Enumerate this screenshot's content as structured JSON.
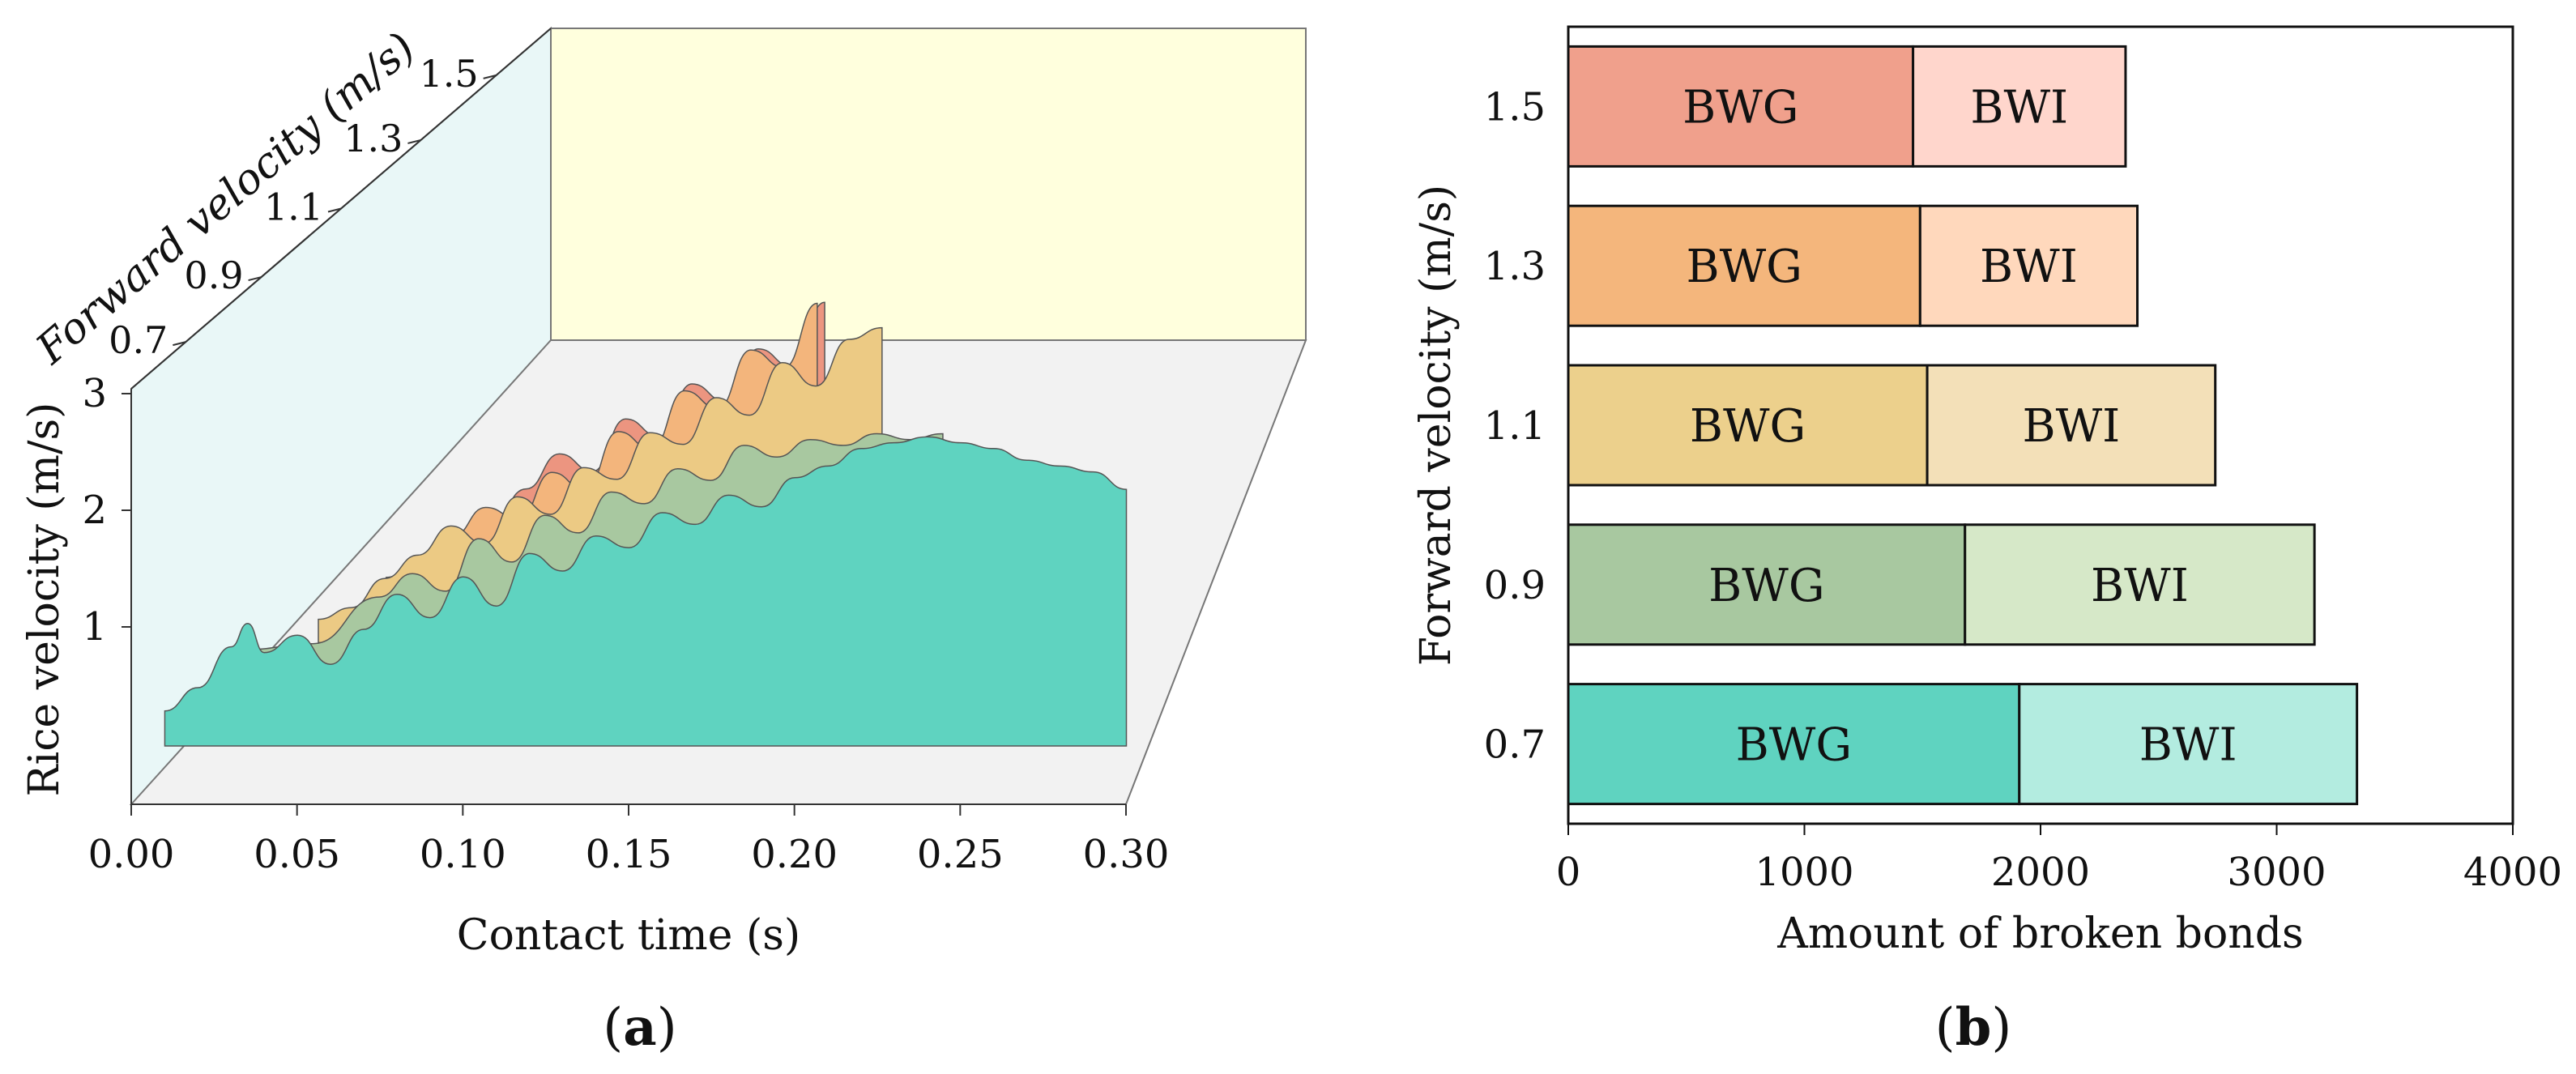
{
  "chart_data": [
    {
      "id": "a",
      "type": "area",
      "panel_label": "a",
      "xlabel": "Contact time (s)",
      "ylabel": "Rice velocity (m/s)",
      "zlabel": "Forward velocity (m/s)",
      "xlim": [
        0,
        0.3
      ],
      "ylim": [
        0,
        3.5
      ],
      "x_ticks": [
        "0.00",
        "0.05",
        "0.10",
        "0.15",
        "0.20",
        "0.25",
        "0.30"
      ],
      "y_ticks": [
        "1",
        "2",
        "3"
      ],
      "z_ticks": [
        "0.7",
        "0.9",
        "1.1",
        "1.3",
        "1.5"
      ],
      "series": [
        {
          "name": "0.7",
          "color": "#5fd3c0",
          "x": [
            0,
            0.01,
            0.02,
            0.025,
            0.03,
            0.04,
            0.05,
            0.06,
            0.07,
            0.08,
            0.09,
            0.1,
            0.11,
            0.12,
            0.13,
            0.14,
            0.15,
            0.16,
            0.17,
            0.18,
            0.19,
            0.2,
            0.21,
            0.22,
            0.23,
            0.24,
            0.25,
            0.26,
            0.27,
            0.28,
            0.29
          ],
          "y": [
            0.3,
            0.5,
            0.85,
            1.05,
            0.8,
            0.95,
            0.7,
            1.0,
            1.3,
            1.1,
            1.45,
            1.2,
            1.65,
            1.5,
            1.8,
            1.7,
            2.0,
            1.9,
            2.15,
            2.05,
            2.3,
            2.4,
            2.55,
            2.6,
            2.65,
            2.6,
            2.55,
            2.45,
            2.4,
            2.35,
            2.2
          ]
        },
        {
          "name": "0.9",
          "color": "#a8c8a0",
          "x": [
            0,
            0.02,
            0.04,
            0.05,
            0.06,
            0.07,
            0.08,
            0.09,
            0.1,
            0.11,
            0.12,
            0.13,
            0.14,
            0.15,
            0.16,
            0.17,
            0.18,
            0.19,
            0.2,
            0.21
          ],
          "y": [
            0.25,
            0.3,
            0.7,
            0.9,
            0.75,
            1.2,
            1.0,
            1.4,
            1.25,
            1.6,
            1.5,
            1.8,
            1.7,
            2.0,
            1.9,
            2.05,
            2.0,
            2.1,
            2.05,
            2.1
          ]
        },
        {
          "name": "1.1",
          "color": "#ecca84",
          "x": [
            0,
            0.01,
            0.02,
            0.03,
            0.04,
            0.05,
            0.06,
            0.07,
            0.08,
            0.09,
            0.1,
            0.11,
            0.12,
            0.13,
            0.14,
            0.15,
            0.16,
            0.17
          ],
          "y": [
            0.2,
            0.3,
            0.55,
            0.75,
            1.0,
            0.85,
            1.25,
            1.1,
            1.5,
            1.4,
            1.8,
            1.7,
            2.1,
            1.95,
            2.4,
            2.2,
            2.6,
            2.7
          ]
        },
        {
          "name": "1.3",
          "color": "#f3b57c",
          "x": [
            0,
            0.01,
            0.02,
            0.03,
            0.04,
            0.05,
            0.06,
            0.07,
            0.08,
            0.09,
            0.1,
            0.11,
            0.12,
            0.13
          ],
          "y": [
            0.25,
            0.4,
            0.6,
            0.85,
            0.75,
            1.15,
            1.0,
            1.5,
            1.35,
            1.85,
            1.7,
            2.2,
            2.05,
            2.6
          ]
        },
        {
          "name": "1.5",
          "color": "#ec9580",
          "x": [
            0,
            0.01,
            0.02,
            0.03,
            0.04,
            0.05,
            0.06,
            0.07,
            0.08,
            0.09,
            0.1,
            0.11
          ],
          "y": [
            0.25,
            0.45,
            0.7,
            1.0,
            0.85,
            1.3,
            1.15,
            1.6,
            1.45,
            1.9,
            1.75,
            2.3
          ]
        }
      ]
    },
    {
      "id": "b",
      "type": "bar",
      "orientation": "horizontal",
      "stacked": true,
      "panel_label": "b",
      "xlabel": "Amount of broken bonds",
      "ylabel": "Forward velocity (m/s)",
      "xlim": [
        0,
        4000
      ],
      "x_ticks": [
        "0",
        "1000",
        "2000",
        "3000",
        "4000"
      ],
      "categories": [
        "0.7",
        "0.9",
        "1.1",
        "1.3",
        "1.5"
      ],
      "series": [
        {
          "name": "BWG",
          "label": "BWG",
          "values": [
            1910,
            1680,
            1520,
            1490,
            1460
          ],
          "colors": [
            "#5fd3c0",
            "#a8c8a0",
            "#ecd08c",
            "#f4b67c",
            "#f0a08c"
          ]
        },
        {
          "name": "BWI",
          "label": "BWI",
          "values": [
            1430,
            1480,
            1220,
            920,
            900
          ],
          "colors": [
            "#b3ece0",
            "#d6e8c8",
            "#f3e0b8",
            "#ffd8bc",
            "#ffd6cc"
          ]
        }
      ]
    }
  ]
}
